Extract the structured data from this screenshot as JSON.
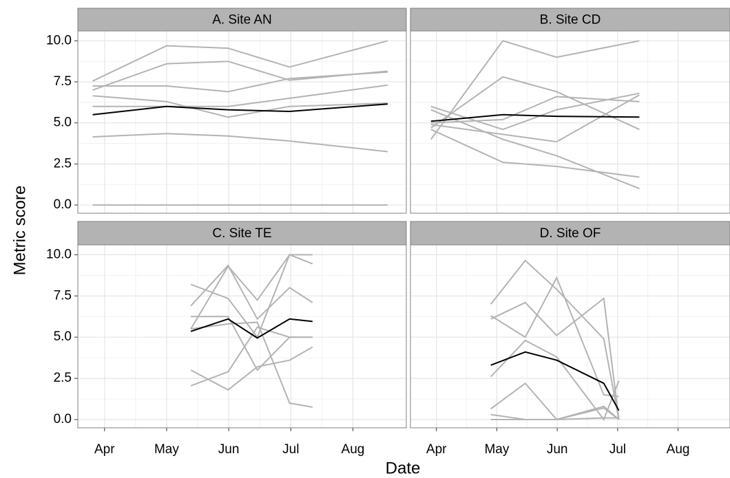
{
  "axis_labels": {
    "x": "Date",
    "y": "Metric score"
  },
  "chart_data": [
    {
      "type": "line",
      "title": "A. Site AN",
      "x": [
        3.81,
        5.0,
        5.99,
        6.98,
        8.56
      ],
      "xlim": [
        3.57,
        8.86
      ],
      "xticks": [
        {
          "value": 4,
          "label": "Apr"
        },
        {
          "value": 5,
          "label": "May"
        },
        {
          "value": 6,
          "label": "Jun"
        },
        {
          "value": 7,
          "label": "Jul"
        },
        {
          "value": 8,
          "label": "Aug"
        }
      ],
      "ylim": [
        -0.5,
        10.6
      ],
      "yticks": [
        {
          "value": 0,
          "label": "0.0"
        },
        2.5,
        {
          "value": 5,
          "label": "5.0"
        },
        7.5,
        {
          "value": 10,
          "label": "10.0"
        }
      ],
      "grid": true,
      "series": [
        {
          "color": "#b3b3b3",
          "values": [
            0,
            0,
            0,
            0,
            0
          ]
        },
        {
          "color": "#b3b3b3",
          "values": [
            4.15,
            4.35,
            4.2,
            3.9,
            3.25
          ]
        },
        {
          "color": "#b3b3b3",
          "values": [
            7.55,
            9.7,
            9.55,
            8.4,
            10.0
          ]
        },
        {
          "color": "#b3b3b3",
          "values": [
            7.0,
            8.6,
            8.75,
            7.6,
            8.15
          ]
        },
        {
          "color": "#b3b3b3",
          "values": [
            7.25,
            7.25,
            6.9,
            7.7,
            8.1
          ]
        },
        {
          "color": "#b3b3b3",
          "values": [
            6.65,
            6.3,
            5.35,
            6.0,
            6.2
          ]
        },
        {
          "color": "#b3b3b3",
          "values": [
            6.0,
            6.0,
            6.0,
            6.5,
            7.3
          ]
        },
        {
          "color": "#000000",
          "values": [
            5.5,
            6.0,
            5.8,
            5.7,
            6.15
          ]
        }
      ]
    },
    {
      "type": "line",
      "title": "B. Site CD",
      "x": [
        3.91,
        5.1,
        5.99,
        7.36
      ],
      "xlim": [
        3.57,
        8.86
      ],
      "xticks": [
        {
          "value": 4,
          "label": "Apr"
        },
        {
          "value": 5,
          "label": "May"
        },
        {
          "value": 6,
          "label": "Jun"
        },
        {
          "value": 7,
          "label": "Jul"
        },
        {
          "value": 8,
          "label": "Aug"
        }
      ],
      "ylim": [
        -0.5,
        10.6
      ],
      "yticks": [
        {
          "value": 0,
          "label": "0.0"
        },
        2.5,
        {
          "value": 5,
          "label": "5.0"
        },
        7.5,
        {
          "value": 10,
          "label": "10.0"
        }
      ],
      "grid": true,
      "series": [
        {
          "color": "#b3b3b3",
          "values": [
            4.0,
            10.0,
            9.0,
            10.0
          ]
        },
        {
          "color": "#b3b3b3",
          "values": [
            4.7,
            7.8,
            6.9,
            4.6
          ]
        },
        {
          "color": "#b3b3b3",
          "values": [
            5.0,
            5.2,
            6.6,
            6.3
          ]
        },
        {
          "color": "#b3b3b3",
          "values": [
            6.0,
            4.6,
            5.8,
            6.8
          ]
        },
        {
          "color": "#b3b3b3",
          "values": [
            4.9,
            4.3,
            3.85,
            6.7
          ]
        },
        {
          "color": "#b3b3b3",
          "values": [
            5.8,
            4.0,
            3.0,
            1.0
          ]
        },
        {
          "color": "#b3b3b3",
          "values": [
            4.6,
            2.6,
            2.35,
            1.7
          ]
        },
        {
          "color": "#000000",
          "values": [
            5.1,
            5.5,
            5.4,
            5.35
          ]
        }
      ]
    },
    {
      "type": "line",
      "title": "C. Site TE",
      "x": [
        5.39,
        5.99,
        6.46,
        6.98,
        7.35
      ],
      "xlim": [
        3.57,
        8.86
      ],
      "xticks": [
        {
          "value": 4,
          "label": "Apr"
        },
        {
          "value": 5,
          "label": "May"
        },
        {
          "value": 6,
          "label": "Jun"
        },
        {
          "value": 7,
          "label": "Jul"
        },
        {
          "value": 8,
          "label": "Aug"
        }
      ],
      "ylim": [
        -0.5,
        10.6
      ],
      "yticks": [
        {
          "value": 0,
          "label": "0.0"
        },
        2.5,
        {
          "value": 5,
          "label": "5.0"
        },
        7.5,
        {
          "value": 10,
          "label": "10.0"
        }
      ],
      "grid": true,
      "series": [
        {
          "color": "#b3b3b3",
          "values": [
            8.2,
            7.35,
            5.0,
            10.0,
            10.0
          ]
        },
        {
          "color": "#b3b3b3",
          "values": [
            6.9,
            9.35,
            6.1,
            8.0,
            7.1
          ]
        },
        {
          "color": "#b3b3b3",
          "values": [
            5.5,
            9.3,
            7.25,
            10.0,
            9.45
          ]
        },
        {
          "color": "#b3b3b3",
          "values": [
            6.25,
            6.25,
            3.0,
            5.0,
            5.0
          ]
        },
        {
          "color": "#b3b3b3",
          "values": [
            5.5,
            5.8,
            5.9,
            1.0,
            0.75
          ]
        },
        {
          "color": "#b3b3b3",
          "values": [
            3.0,
            1.8,
            3.2,
            3.6,
            4.4
          ]
        },
        {
          "color": "#b3b3b3",
          "values": [
            2.05,
            2.9,
            5.6,
            5.0,
            5.0
          ]
        },
        {
          "color": "#000000",
          "values": [
            5.35,
            6.1,
            4.95,
            6.1,
            5.95
          ]
        }
      ]
    },
    {
      "type": "line",
      "title": "D. Site OF",
      "x": [
        4.9,
        5.47,
        5.99,
        6.77,
        7.02
      ],
      "xlim": [
        3.57,
        8.86
      ],
      "xticks": [
        {
          "value": 4,
          "label": "Apr"
        },
        {
          "value": 5,
          "label": "May"
        },
        {
          "value": 6,
          "label": "Jun"
        },
        {
          "value": 7,
          "label": "Jul"
        },
        {
          "value": 8,
          "label": "Aug"
        }
      ],
      "ylim": [
        -0.5,
        10.6
      ],
      "yticks": [
        {
          "value": 0,
          "label": "0.0"
        },
        2.5,
        {
          "value": 5,
          "label": "5.0"
        },
        7.5,
        {
          "value": 10,
          "label": "10.0"
        }
      ],
      "grid": true,
      "series": [
        {
          "color": "#b3b3b3",
          "values": [
            7.0,
            9.65,
            7.9,
            4.9,
            0.0
          ]
        },
        {
          "color": "#b3b3b3",
          "values": [
            6.1,
            7.1,
            5.1,
            7.35,
            0.0
          ]
        },
        {
          "color": "#b3b3b3",
          "values": [
            6.3,
            5.0,
            8.6,
            1.5,
            1.4
          ]
        },
        {
          "color": "#b3b3b3",
          "values": [
            2.6,
            4.8,
            3.8,
            0.0,
            2.35
          ]
        },
        {
          "color": "#b3b3b3",
          "values": [
            0.65,
            2.2,
            0.0,
            0.7,
            0.0
          ]
        },
        {
          "color": "#b3b3b3",
          "values": [
            0.3,
            0.0,
            0.0,
            0.8,
            0.0
          ]
        },
        {
          "color": "#b3b3b3",
          "values": [
            0,
            0,
            0,
            0.1,
            0.1
          ]
        },
        {
          "color": "#000000",
          "values": [
            3.3,
            4.1,
            3.6,
            2.2,
            0.55
          ]
        }
      ]
    }
  ]
}
